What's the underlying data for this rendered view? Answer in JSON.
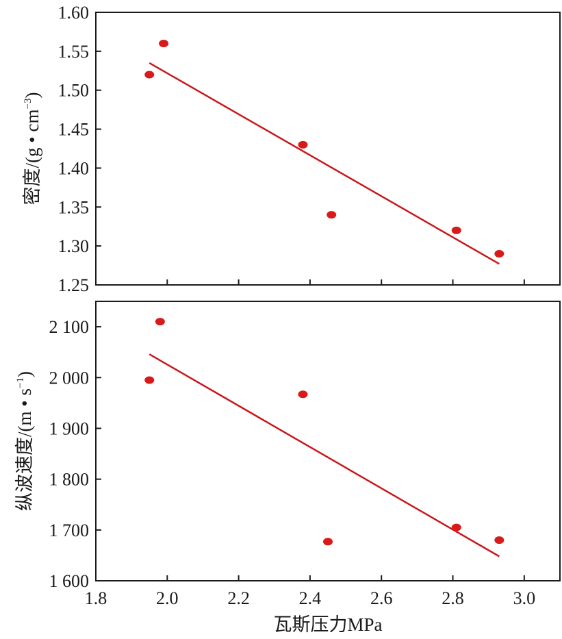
{
  "colors": {
    "marker": "#d91a1a",
    "trendline": "#c8181c",
    "axis": "#1a1a1a"
  },
  "xlabel": "瓦斯压力MPa",
  "x_ticks": [
    "1.8",
    "2.0",
    "2.2",
    "2.4",
    "2.6",
    "2.8",
    "3.0"
  ],
  "top_panel": {
    "ylabel_main": "密度/(g • cm",
    "ylabel_sup": "−3",
    "ylabel_close": ")",
    "y_ticks": [
      "1.60",
      "1.55",
      "1.50",
      "1.45",
      "1.40",
      "1.35",
      "1.30",
      "1.25"
    ]
  },
  "bottom_panel": {
    "ylabel_main": "纵波速度/(m • s",
    "ylabel_sup": "−1",
    "ylabel_close": ")",
    "y_ticks": [
      "2 100",
      "2 000",
      "1 900",
      "1 800",
      "1 700",
      "1 600"
    ]
  },
  "chart_data": [
    {
      "type": "scatter",
      "xlabel": "",
      "ylabel": "密度/(g • cm−3)",
      "xlim": [
        1.8,
        3.1
      ],
      "ylim": [
        1.25,
        1.6
      ],
      "x_ticks": [
        1.8,
        2.0,
        2.2,
        2.4,
        2.6,
        2.8,
        3.0
      ],
      "y_ticks": [
        1.6,
        1.55,
        1.5,
        1.45,
        1.4,
        1.35,
        1.3,
        1.25
      ],
      "grid": false,
      "points": [
        {
          "x": 1.95,
          "y": 1.52
        },
        {
          "x": 1.99,
          "y": 1.56
        },
        {
          "x": 2.38,
          "y": 1.43
        },
        {
          "x": 2.46,
          "y": 1.34
        },
        {
          "x": 2.81,
          "y": 1.32
        },
        {
          "x": 2.93,
          "y": 1.29
        }
      ],
      "trendline": {
        "x": [
          1.95,
          2.93
        ],
        "y": [
          1.535,
          1.277
        ]
      }
    },
    {
      "type": "scatter",
      "xlabel": "瓦斯压力MPa",
      "ylabel": "纵波速度/(m • s−1)",
      "xlim": [
        1.8,
        3.1
      ],
      "ylim": [
        1600,
        2150
      ],
      "x_ticks": [
        1.8,
        2.0,
        2.2,
        2.4,
        2.6,
        2.8,
        3.0
      ],
      "y_ticks": [
        2100,
        2000,
        1900,
        1800,
        1700,
        1600
      ],
      "grid": false,
      "points": [
        {
          "x": 1.95,
          "y": 1995
        },
        {
          "x": 1.98,
          "y": 2110
        },
        {
          "x": 2.38,
          "y": 1967
        },
        {
          "x": 2.45,
          "y": 1677
        },
        {
          "x": 2.81,
          "y": 1705
        },
        {
          "x": 2.93,
          "y": 1680
        }
      ],
      "trendline": {
        "x": [
          1.95,
          2.93
        ],
        "y": [
          2046,
          1648
        ]
      }
    }
  ]
}
